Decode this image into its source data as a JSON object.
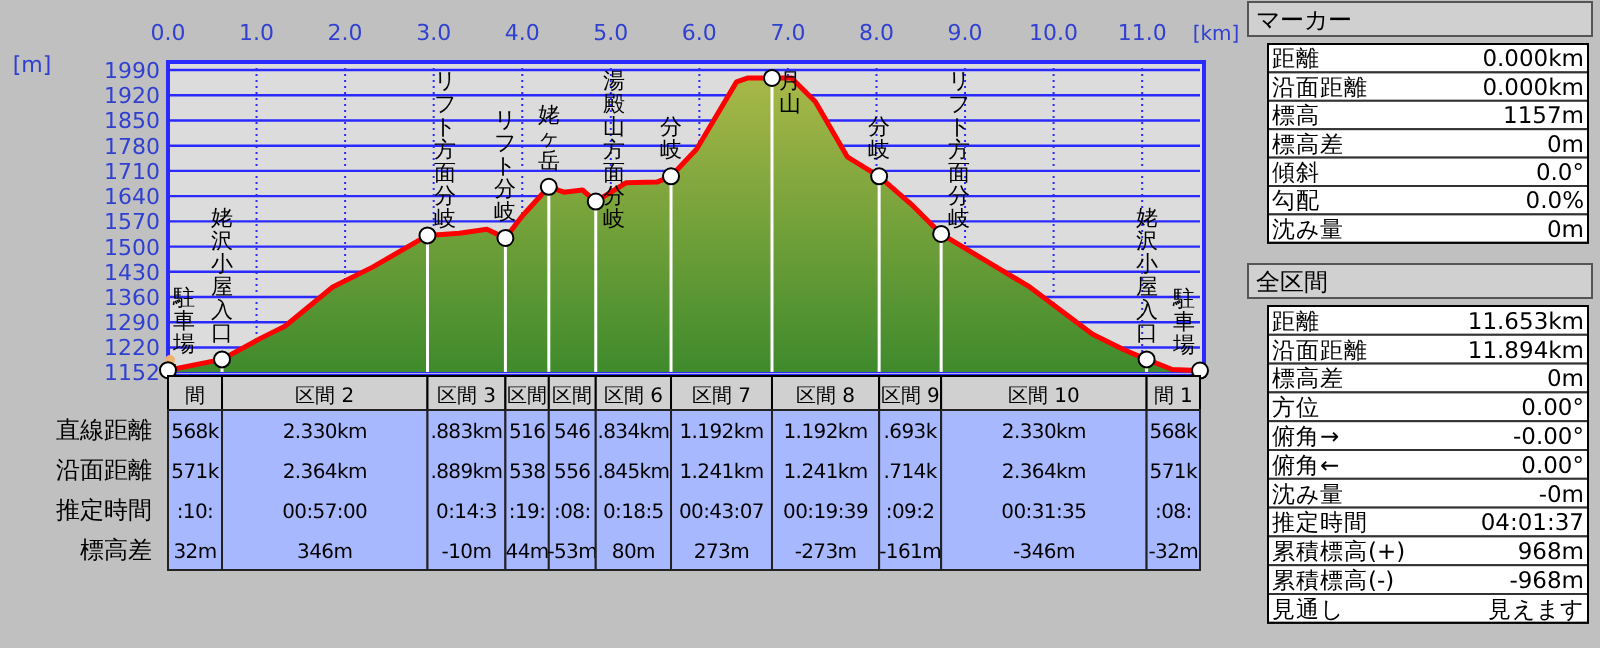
{
  "chart_data": [
    {
      "type": "area",
      "xlabel": "[km]",
      "ylabel": "[m]",
      "xlim": [
        0,
        11.653
      ],
      "ylim": [
        1152,
        1990
      ],
      "grid": true,
      "tick_labels": "xy",
      "xticks": [
        {
          "value": 0,
          "label": "0.0"
        },
        {
          "value": 1,
          "label": "1.0"
        },
        {
          "value": 2,
          "label": "2.0"
        },
        {
          "value": 3,
          "label": "3.0"
        },
        {
          "value": 4,
          "label": "4.0"
        },
        {
          "value": 5,
          "label": "5.0"
        },
        {
          "value": 6,
          "label": "6.0"
        },
        {
          "value": 7,
          "label": "7.0"
        },
        {
          "value": 8,
          "label": "8.0"
        },
        {
          "value": 9,
          "label": "9.0"
        },
        {
          "value": 10,
          "label": "10.0"
        },
        {
          "value": 11,
          "label": "11.0"
        }
      ],
      "yticks": [
        1152,
        1220,
        1290,
        1360,
        1430,
        1500,
        1570,
        1640,
        1710,
        1780,
        1850,
        1920,
        1990
      ],
      "series": [
        {
          "color": "#ff0000",
          "x": [
            0,
            0.61,
            1.05,
            1.32,
            1.86,
            2.31,
            2.93,
            3.29,
            3.6,
            3.81,
            4.0,
            4.3,
            4.47,
            4.68,
            4.83,
            5.17,
            5.52,
            5.68,
            5.97,
            6.42,
            6.55,
            6.82,
            7.04,
            7.31,
            7.67,
            8.03,
            8.39,
            8.73,
            9.28,
            9.73,
            10.44,
            10.8,
            11.05,
            11.34,
            11.63
          ],
          "values": [
            1157,
            1187,
            1246,
            1279,
            1388,
            1443,
            1531,
            1537,
            1548,
            1524,
            1585,
            1666,
            1651,
            1657,
            1625,
            1677,
            1679,
            1695,
            1771,
            1957,
            1968,
            1968,
            1968,
            1902,
            1749,
            1695,
            1618,
            1535,
            1454,
            1388,
            1257,
            1213,
            1187,
            1159,
            1156
          ]
        },
        {
          "type": "lollipop",
          "color": "#ffffff",
          "x": [
            0,
            0.61,
            2.93,
            3.81,
            4.3,
            4.83,
            5.68,
            6.82,
            8.03,
            8.73,
            11.05,
            11.653
          ],
          "values": [
            1157,
            1187,
            1531,
            1524,
            1666,
            1625,
            1695,
            1968,
            1695,
            1535,
            1187,
            1156
          ]
        }
      ],
      "annotations": [
        {
          "text": "駐車場",
          "x": 0,
          "y": 1157
        },
        {
          "text": "姥沢小屋入口",
          "x": 0.61,
          "y": 1187
        },
        {
          "text": "リフト方面分岐",
          "x": 2.93,
          "y": 1531
        },
        {
          "text": "リフト分岐",
          "x": 3.81,
          "y": 1524
        },
        {
          "text": "姥ヶ岳",
          "x": 4.3,
          "y": 1666
        },
        {
          "text": "湯殿山方面分岐",
          "x": 4.83,
          "y": 1625
        },
        {
          "text": "分岐",
          "x": 5.68,
          "y": 1695
        },
        {
          "text": "月山",
          "x": 6.82,
          "y": 1968
        },
        {
          "text": "分岐",
          "x": 8.03,
          "y": 1695
        },
        {
          "text": "リフト方面分岐",
          "x": 8.73,
          "y": 1535
        },
        {
          "text": "姥沢小屋入口",
          "x": 11.05,
          "y": 1187
        },
        {
          "text": "駐車場",
          "x": 11.653,
          "y": 1156
        }
      ]
    },
    {
      "type": "other",
      "categories": [
        "間",
        "区間 2",
        "区間 3",
        "区間",
        "区間",
        "区間 6",
        "区間 7",
        "区間 8",
        "区間 9",
        "区間 10",
        "間 1"
      ],
      "y_categories": [
        "直線距離",
        "沿面距離",
        "推定時間",
        "標高差"
      ],
      "cell_labels": [
        [
          "568k",
          "2.330km",
          ".883km",
          "516",
          "546",
          ".834km",
          "1.192km",
          "1.192km",
          ".693k",
          "2.330km",
          "568k"
        ],
        [
          "571k",
          "2.364km",
          ".889km",
          "538",
          "556",
          ".845km",
          "1.241km",
          "1.241km",
          ".714k",
          "2.364km",
          "571k"
        ],
        [
          ":10:",
          "00:57:00",
          "0:14:3",
          ":19:",
          ":08:",
          "0:18:5",
          "00:43:07",
          "00:19:39",
          ":09:2",
          "00:31:35",
          ":08:"
        ],
        [
          "32m",
          "346m",
          "-10m",
          "44m",
          "-53m",
          "80m",
          "273m",
          "-273m",
          "-161m",
          "-346m",
          "-32m"
        ]
      ]
    },
    {
      "type": "other",
      "title": "マーカー",
      "y_categories": [
        "距離",
        "沿面距離",
        "標高",
        "標高差",
        "傾斜",
        "勾配",
        "沈み量"
      ],
      "cell_labels": [
        [
          "0.000km"
        ],
        [
          "0.000km"
        ],
        [
          "1157m"
        ],
        [
          "0m"
        ],
        [
          "0.0°"
        ],
        [
          "0.0%"
        ],
        [
          "0m"
        ]
      ]
    },
    {
      "type": "other",
      "title": "全区間",
      "y_categories": [
        "距離",
        "沿面距離",
        "標高差",
        "方位",
        "俯角→",
        "俯角←",
        "沈み量",
        "推定時間",
        "累積標高(+)",
        "累積標高(-)",
        "見通し"
      ],
      "cell_labels": [
        [
          "11.653km"
        ],
        [
          "11.894km"
        ],
        [
          "0m"
        ],
        [
          "0.00°"
        ],
        [
          "-0.00°"
        ],
        [
          "0.00°"
        ],
        [
          "-0m"
        ],
        [
          "04:01:37"
        ],
        [
          "968m"
        ],
        [
          "-968m"
        ],
        [
          "見えます"
        ]
      ]
    }
  ]
}
